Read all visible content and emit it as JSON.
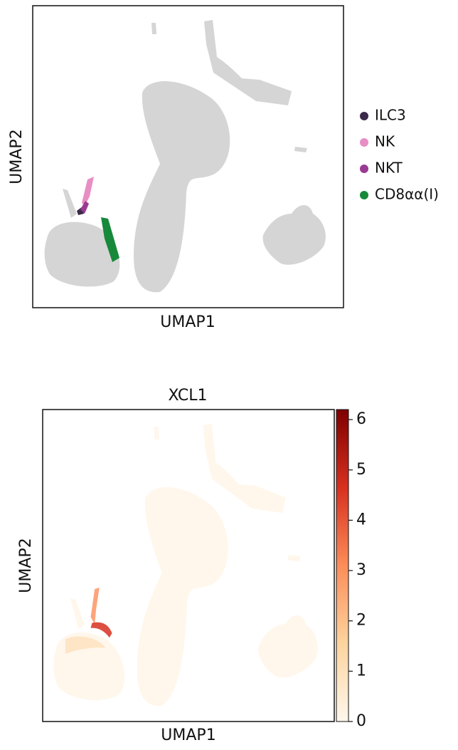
{
  "chart_data": [
    {
      "type": "scatter",
      "xlabel": "UMAP1",
      "ylabel": "UMAP2",
      "background_color": "#d3d3d3",
      "legend": "right",
      "series": [
        {
          "name": "ILC3",
          "color": "#3b2a4a"
        },
        {
          "name": "NK",
          "color": "#e88ec4"
        },
        {
          "name": "NKT",
          "color": "#9a3b93"
        },
        {
          "name": "CD8αα(I)",
          "color": "#17893a"
        }
      ]
    },
    {
      "type": "scatter",
      "title": "XCL1",
      "xlabel": "UMAP1",
      "ylabel": "UMAP2",
      "colormap": [
        "#fff7ec",
        "#fdd49e",
        "#fc8d59",
        "#d7301f",
        "#7f0000"
      ],
      "clim": [
        0,
        6.2
      ],
      "cticks": [
        0,
        1,
        2,
        3,
        4,
        5,
        6
      ]
    }
  ]
}
